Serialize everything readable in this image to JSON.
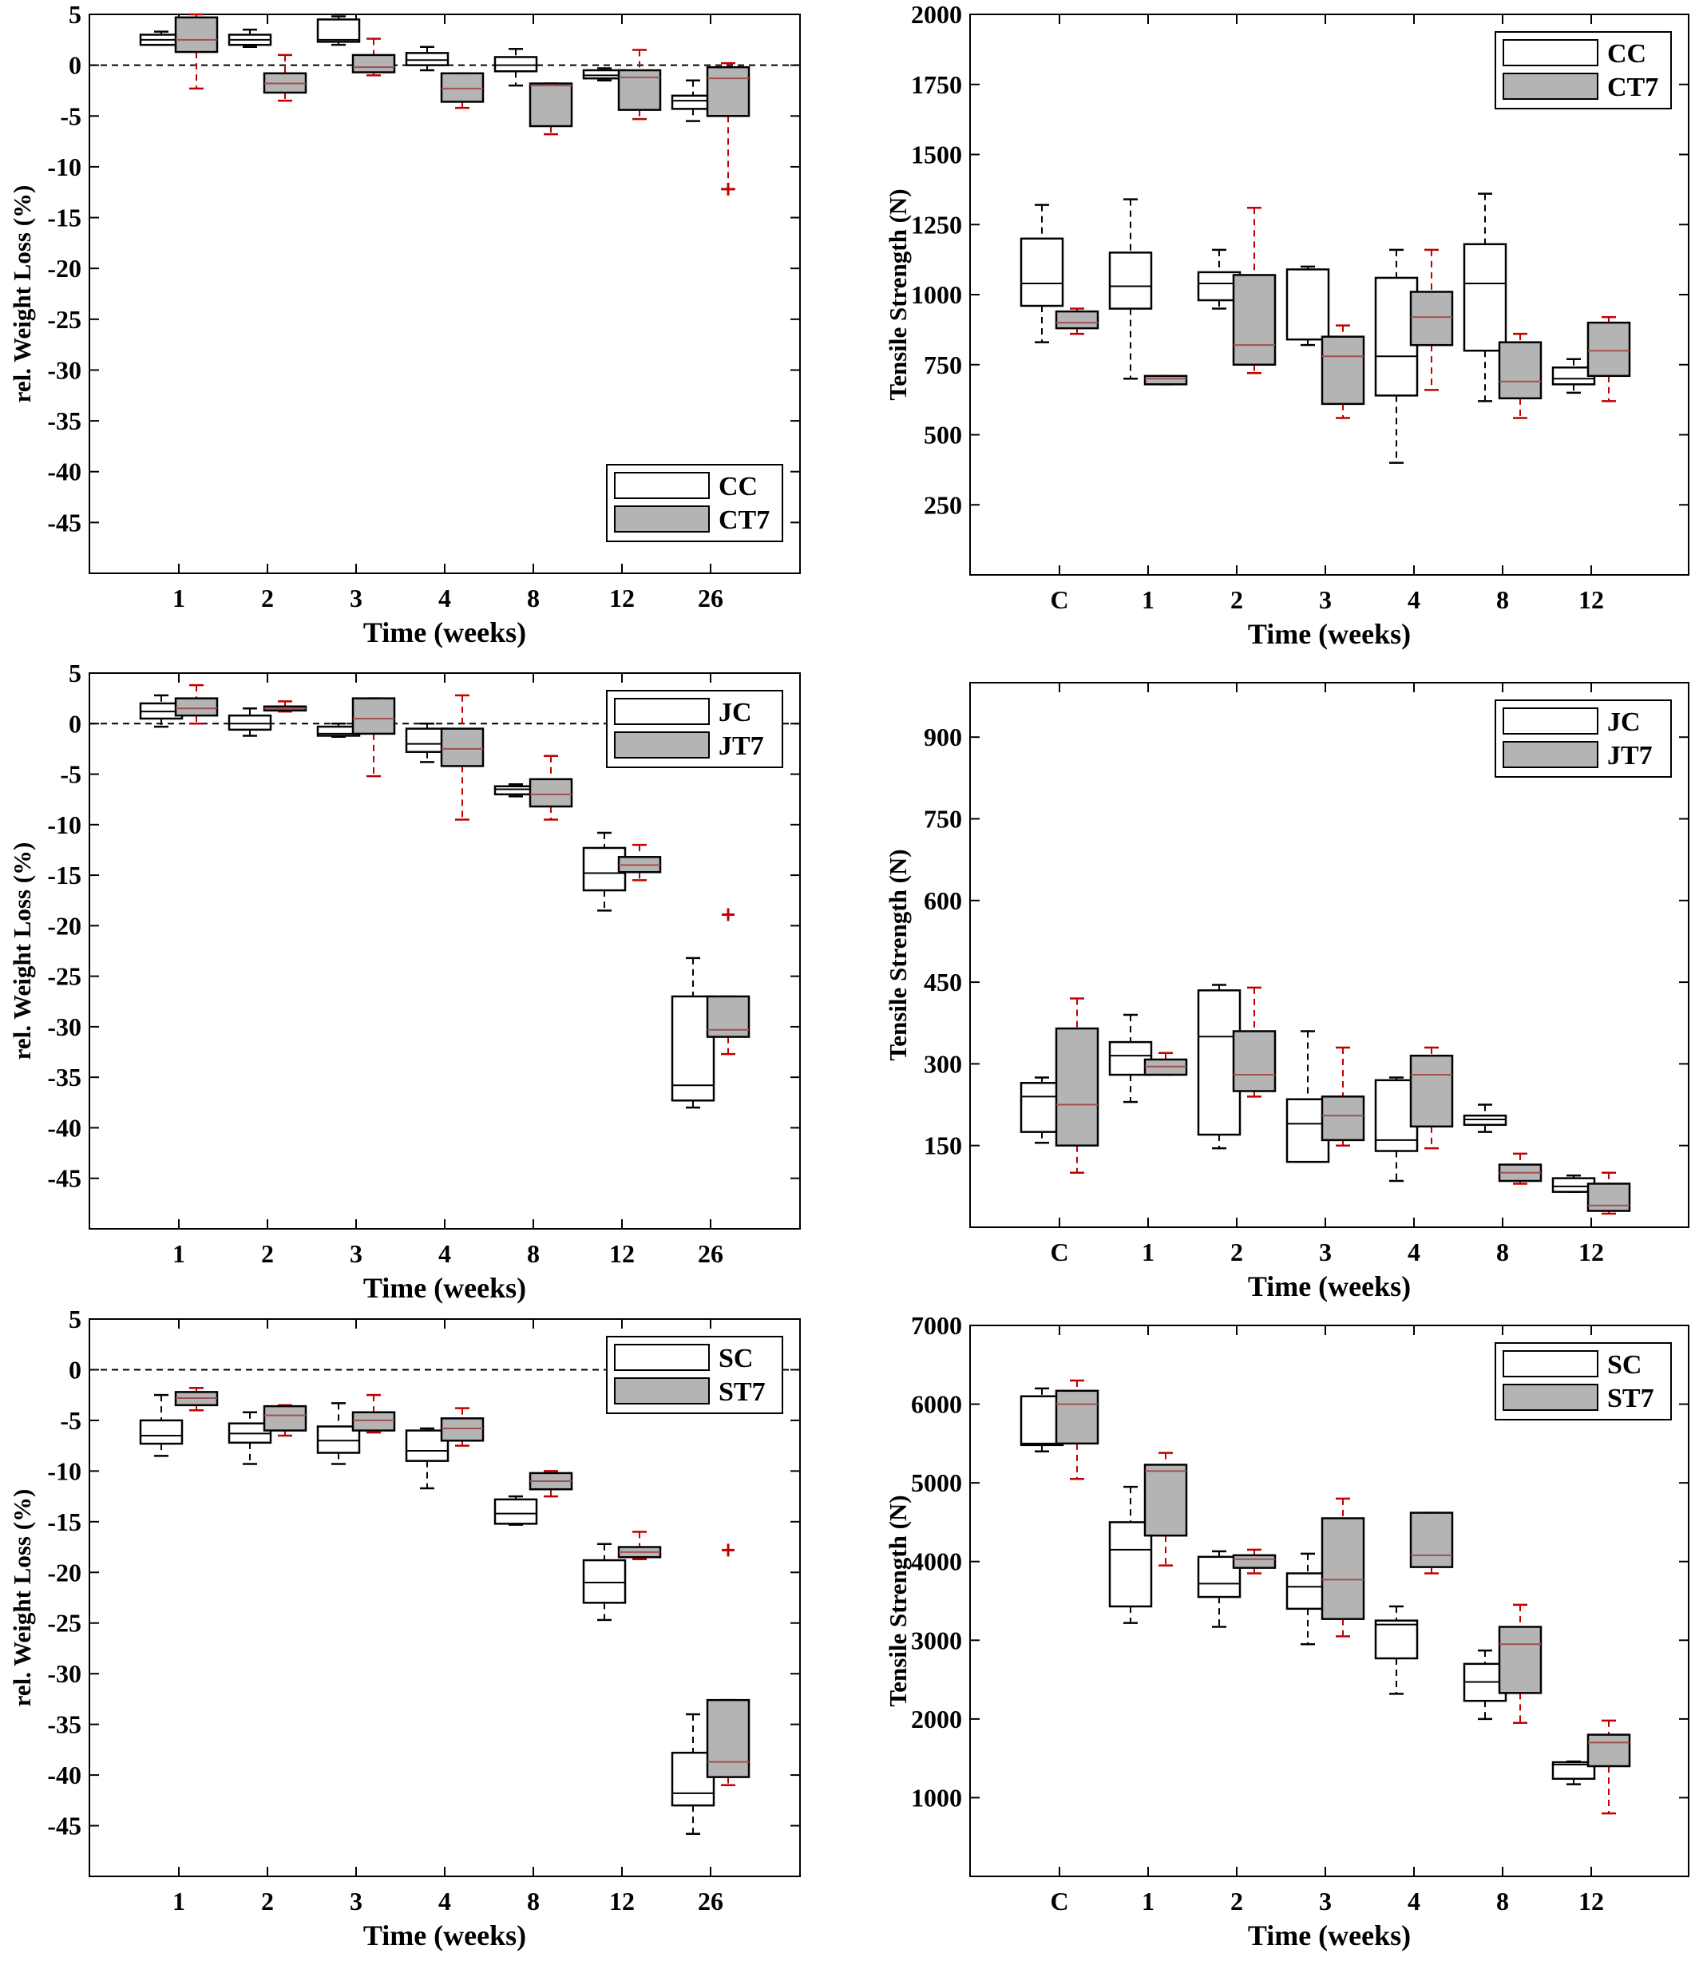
{
  "colors": {
    "control_fill": "#ffffff",
    "treated_fill": "#b4b4b4",
    "control_whisker": "#000000",
    "treated_whisker": "#c00000",
    "treated_median": "#a05050",
    "overlap_edge": "#2e8b8b"
  },
  "chart_data": [
    {
      "type": "box",
      "xlabel": "Time (weeks)",
      "ylabel": "rel. Weight Loss (%)",
      "ylim": [
        -50,
        5
      ],
      "yticks": [
        5,
        0,
        -5,
        -10,
        -15,
        -20,
        -25,
        -30,
        -35,
        -40,
        -45
      ],
      "reference_line": 0,
      "categories": [
        "1",
        "2",
        "3",
        "4",
        "8",
        "12",
        "26"
      ],
      "legend_position": "bottom-right",
      "series": [
        {
          "name": "CC",
          "boxes": [
            {
              "min": 2.0,
              "q1": 2.0,
              "median": 2.5,
              "q3": 3.0,
              "max": 3.3
            },
            {
              "min": 1.8,
              "q1": 2.0,
              "median": 2.5,
              "q3": 3.0,
              "max": 3.5
            },
            {
              "min": 2.0,
              "q1": 2.3,
              "median": 2.5,
              "q3": 4.5,
              "max": 4.8
            },
            {
              "min": -0.5,
              "q1": 0.0,
              "median": 0.5,
              "q3": 1.2,
              "max": 1.8
            },
            {
              "min": -2.0,
              "q1": -0.6,
              "median": 0.0,
              "q3": 0.8,
              "max": 1.6
            },
            {
              "min": -1.5,
              "q1": -1.3,
              "median": -1.0,
              "q3": -0.5,
              "max": -0.3
            },
            {
              "min": -5.5,
              "q1": -4.3,
              "median": -3.5,
              "q3": -3.0,
              "max": -1.5
            }
          ]
        },
        {
          "name": "CT7",
          "boxes": [
            {
              "min": -2.3,
              "q1": 1.3,
              "median": 2.5,
              "q3": 4.7,
              "max": 5.0
            },
            {
              "min": -3.5,
              "q1": -2.7,
              "median": -1.8,
              "q3": -0.8,
              "max": 1.0
            },
            {
              "min": -1.0,
              "q1": -0.7,
              "median": -0.2,
              "q3": 1.0,
              "max": 2.6
            },
            {
              "min": -4.2,
              "q1": -3.6,
              "median": -2.3,
              "q3": -0.8,
              "max": -0.8
            },
            {
              "min": -6.8,
              "q1": -6.0,
              "median": -2.0,
              "q3": -1.8,
              "max": -1.8
            },
            {
              "min": -5.3,
              "q1": -4.4,
              "median": -1.2,
              "q3": -0.5,
              "max": 1.5
            },
            {
              "min": -12.2,
              "q1": -5.0,
              "median": -1.3,
              "q3": -0.2,
              "max": 0.2,
              "outliers": [
                -12.2
              ]
            }
          ]
        }
      ]
    },
    {
      "type": "box",
      "xlabel": "Time (weeks)",
      "ylabel": "Tensile Strength (N)",
      "ylim": [
        0,
        2000
      ],
      "yticks": [
        2000,
        1750,
        1500,
        1250,
        1000,
        750,
        500,
        250
      ],
      "categories": [
        "C",
        "1",
        "2",
        "3",
        "4",
        "8",
        "12"
      ],
      "legend_position": "top-right",
      "series": [
        {
          "name": "CC",
          "boxes": [
            {
              "min": 830,
              "q1": 960,
              "median": 1040,
              "q3": 1200,
              "max": 1320
            },
            {
              "min": 700,
              "q1": 950,
              "median": 1030,
              "q3": 1150,
              "max": 1340
            },
            {
              "min": 950,
              "q1": 980,
              "median": 1040,
              "q3": 1080,
              "max": 1160
            },
            {
              "min": 820,
              "q1": 840,
              "median": 840,
              "q3": 1090,
              "max": 1100
            },
            {
              "min": 400,
              "q1": 640,
              "median": 780,
              "q3": 1060,
              "max": 1160
            },
            {
              "min": 620,
              "q1": 800,
              "median": 1040,
              "q3": 1180,
              "max": 1360
            },
            {
              "min": 650,
              "q1": 680,
              "median": 700,
              "q3": 740,
              "max": 770
            }
          ]
        },
        {
          "name": "CT7",
          "boxes": [
            {
              "min": 860,
              "q1": 880,
              "median": 900,
              "q3": 940,
              "max": 950
            },
            {
              "min": 680,
              "q1": 680,
              "median": 700,
              "q3": 710,
              "max": 710
            },
            {
              "min": 720,
              "q1": 750,
              "median": 820,
              "q3": 1070,
              "max": 1310
            },
            {
              "min": 560,
              "q1": 610,
              "median": 780,
              "q3": 850,
              "max": 890
            },
            {
              "min": 660,
              "q1": 820,
              "median": 920,
              "q3": 1010,
              "max": 1160
            },
            {
              "min": 560,
              "q1": 630,
              "median": 690,
              "q3": 830,
              "max": 860
            },
            {
              "min": 620,
              "q1": 710,
              "median": 800,
              "q3": 900,
              "max": 920
            }
          ]
        }
      ]
    },
    {
      "type": "box",
      "xlabel": "Time (weeks)",
      "ylabel": "rel. Weight Loss (%)",
      "ylim": [
        -50,
        5
      ],
      "yticks": [
        5,
        0,
        -5,
        -10,
        -15,
        -20,
        -25,
        -30,
        -35,
        -40,
        -45
      ],
      "reference_line": 0,
      "categories": [
        "1",
        "2",
        "3",
        "4",
        "8",
        "12",
        "26"
      ],
      "legend_position": "top-right",
      "series": [
        {
          "name": "JC",
          "boxes": [
            {
              "min": -0.3,
              "q1": 0.5,
              "median": 1.2,
              "q3": 2.0,
              "max": 2.8
            },
            {
              "min": -1.2,
              "q1": -0.6,
              "median": 0.0,
              "q3": 0.8,
              "max": 1.5
            },
            {
              "min": -1.3,
              "q1": -1.2,
              "median": -1.0,
              "q3": -0.3,
              "max": 0.0
            },
            {
              "min": -3.8,
              "q1": -2.8,
              "median": -2.0,
              "q3": -0.5,
              "max": 0.0
            },
            {
              "min": -7.2,
              "q1": -7.0,
              "median": -6.5,
              "q3": -6.2,
              "max": -6.0
            },
            {
              "min": -18.5,
              "q1": -16.5,
              "median": -14.8,
              "q3": -12.3,
              "max": -10.8
            },
            {
              "min": -38.0,
              "q1": -37.3,
              "median": -35.8,
              "q3": -27.0,
              "max": -23.2
            }
          ]
        },
        {
          "name": "JT7",
          "boxes": [
            {
              "min": 0.0,
              "q1": 0.8,
              "median": 1.5,
              "q3": 2.5,
              "max": 3.8
            },
            {
              "min": 1.2,
              "q1": 1.3,
              "median": 1.5,
              "q3": 1.7,
              "max": 2.2
            },
            {
              "min": -5.2,
              "q1": -1.0,
              "median": 0.5,
              "q3": 2.5,
              "max": 2.5
            },
            {
              "min": -9.5,
              "q1": -4.2,
              "median": -2.5,
              "q3": -0.5,
              "max": 2.8
            },
            {
              "min": -9.5,
              "q1": -8.2,
              "median": -7.0,
              "q3": -5.5,
              "max": -3.2
            },
            {
              "min": -15.5,
              "q1": -14.7,
              "median": -14.0,
              "q3": -13.2,
              "max": -12.0
            },
            {
              "min": -32.7,
              "q1": -31.0,
              "median": -30.3,
              "q3": -27.0,
              "max": -27.0,
              "outliers": [
                -18.9
              ]
            }
          ]
        }
      ]
    },
    {
      "type": "box",
      "xlabel": "Time (weeks)",
      "ylabel": "Tensile Strength (N)",
      "ylim": [
        0,
        1000
      ],
      "yticks": [
        900,
        750,
        600,
        450,
        300,
        150
      ],
      "categories": [
        "C",
        "1",
        "2",
        "3",
        "4",
        "8",
        "12"
      ],
      "legend_position": "top-right",
      "series": [
        {
          "name": "JC",
          "boxes": [
            {
              "min": 155,
              "q1": 175,
              "median": 240,
              "q3": 265,
              "max": 275
            },
            {
              "min": 230,
              "q1": 280,
              "median": 315,
              "q3": 340,
              "max": 390
            },
            {
              "min": 145,
              "q1": 170,
              "median": 350,
              "q3": 435,
              "max": 445
            },
            {
              "min": 120,
              "q1": 120,
              "median": 190,
              "q3": 235,
              "max": 360
            },
            {
              "min": 85,
              "q1": 140,
              "median": 160,
              "q3": 270,
              "max": 275
            },
            {
              "min": 175,
              "q1": 188,
              "median": 198,
              "q3": 205,
              "max": 225
            },
            {
              "min": 65,
              "q1": 65,
              "median": 75,
              "q3": 90,
              "max": 95
            }
          ]
        },
        {
          "name": "JT7",
          "boxes": [
            {
              "min": 100,
              "q1": 150,
              "median": 225,
              "q3": 365,
              "max": 420
            },
            {
              "min": 280,
              "q1": 280,
              "median": 295,
              "q3": 308,
              "max": 320
            },
            {
              "min": 240,
              "q1": 250,
              "median": 280,
              "q3": 360,
              "max": 440
            },
            {
              "min": 150,
              "q1": 160,
              "median": 205,
              "q3": 240,
              "max": 330
            },
            {
              "min": 145,
              "q1": 185,
              "median": 280,
              "q3": 315,
              "max": 330
            },
            {
              "min": 80,
              "q1": 85,
              "median": 100,
              "q3": 115,
              "max": 135
            },
            {
              "min": 25,
              "q1": 30,
              "median": 40,
              "q3": 80,
              "max": 100
            }
          ]
        }
      ]
    },
    {
      "type": "box",
      "xlabel": "Time (weeks)",
      "ylabel": "rel. Weight Loss (%)",
      "ylim": [
        -50,
        5
      ],
      "yticks": [
        5,
        0,
        -5,
        -10,
        -15,
        -20,
        -25,
        -30,
        -35,
        -40,
        -45
      ],
      "reference_line": 0,
      "categories": [
        "1",
        "2",
        "3",
        "4",
        "8",
        "12",
        "26"
      ],
      "legend_position": "top-right",
      "series": [
        {
          "name": "SC",
          "boxes": [
            {
              "min": -8.5,
              "q1": -7.3,
              "median": -6.5,
              "q3": -5.0,
              "max": -2.5
            },
            {
              "min": -9.3,
              "q1": -7.2,
              "median": -6.3,
              "q3": -5.3,
              "max": -4.2
            },
            {
              "min": -9.3,
              "q1": -8.2,
              "median": -7.0,
              "q3": -5.6,
              "max": -3.3
            },
            {
              "min": -11.7,
              "q1": -9.0,
              "median": -8.0,
              "q3": -6.0,
              "max": -5.8
            },
            {
              "min": -15.3,
              "q1": -15.2,
              "median": -14.2,
              "q3": -12.8,
              "max": -12.5
            },
            {
              "min": -24.7,
              "q1": -23.0,
              "median": -21.0,
              "q3": -18.8,
              "max": -17.2
            },
            {
              "min": -45.8,
              "q1": -43.0,
              "median": -41.8,
              "q3": -37.8,
              "max": -34.0
            }
          ]
        },
        {
          "name": "ST7",
          "boxes": [
            {
              "min": -4.0,
              "q1": -3.5,
              "median": -2.8,
              "q3": -2.2,
              "max": -1.8
            },
            {
              "min": -6.5,
              "q1": -6.0,
              "median": -4.5,
              "q3": -3.6,
              "max": -3.5
            },
            {
              "min": -6.2,
              "q1": -6.0,
              "median": -5.0,
              "q3": -4.2,
              "max": -2.5
            },
            {
              "min": -7.5,
              "q1": -7.0,
              "median": -5.8,
              "q3": -4.8,
              "max": -3.8
            },
            {
              "min": -12.5,
              "q1": -11.8,
              "median": -11.0,
              "q3": -10.2,
              "max": -10.0
            },
            {
              "min": -18.7,
              "q1": -18.5,
              "median": -18.0,
              "q3": -17.5,
              "max": -16.0
            },
            {
              "min": -41.0,
              "q1": -40.2,
              "median": -38.7,
              "q3": -32.6,
              "max": -32.6,
              "outliers": [
                -17.8
              ]
            }
          ]
        }
      ]
    },
    {
      "type": "box",
      "xlabel": "Time (weeks)",
      "ylabel": "Tensile Strength (N)",
      "ylim": [
        0,
        7000
      ],
      "yticks": [
        7000,
        6000,
        5000,
        4000,
        3000,
        2000,
        1000
      ],
      "categories": [
        "C",
        "1",
        "2",
        "3",
        "4",
        "8",
        "12"
      ],
      "legend_position": "top-right",
      "series": [
        {
          "name": "SC",
          "boxes": [
            {
              "min": 5400,
              "q1": 5480,
              "median": 5500,
              "q3": 6100,
              "max": 6200
            },
            {
              "min": 3220,
              "q1": 3430,
              "median": 4150,
              "q3": 4500,
              "max": 4950
            },
            {
              "min": 3170,
              "q1": 3550,
              "median": 3720,
              "q3": 4060,
              "max": 4130
            },
            {
              "min": 2950,
              "q1": 3400,
              "median": 3680,
              "q3": 3850,
              "max": 4100
            },
            {
              "min": 2320,
              "q1": 2770,
              "median": 3200,
              "q3": 3250,
              "max": 3430
            },
            {
              "min": 2000,
              "q1": 2230,
              "median": 2470,
              "q3": 2700,
              "max": 2870
            },
            {
              "min": 1170,
              "q1": 1240,
              "median": 1420,
              "q3": 1450,
              "max": 1460
            }
          ]
        },
        {
          "name": "ST7",
          "boxes": [
            {
              "min": 5050,
              "q1": 5500,
              "median": 6000,
              "q3": 6170,
              "max": 6300
            },
            {
              "min": 3950,
              "q1": 4330,
              "median": 5150,
              "q3": 5230,
              "max": 5380
            },
            {
              "min": 3850,
              "q1": 3920,
              "median": 4030,
              "q3": 4080,
              "max": 4150
            },
            {
              "min": 3050,
              "q1": 3270,
              "median": 3770,
              "q3": 4550,
              "max": 4800
            },
            {
              "min": 3850,
              "q1": 3930,
              "median": 4080,
              "q3": 4620,
              "max": 4620
            },
            {
              "min": 1950,
              "q1": 2330,
              "median": 2950,
              "q3": 3170,
              "max": 3450
            },
            {
              "min": 800,
              "q1": 1400,
              "median": 1700,
              "q3": 1800,
              "max": 1980
            }
          ]
        }
      ]
    }
  ]
}
